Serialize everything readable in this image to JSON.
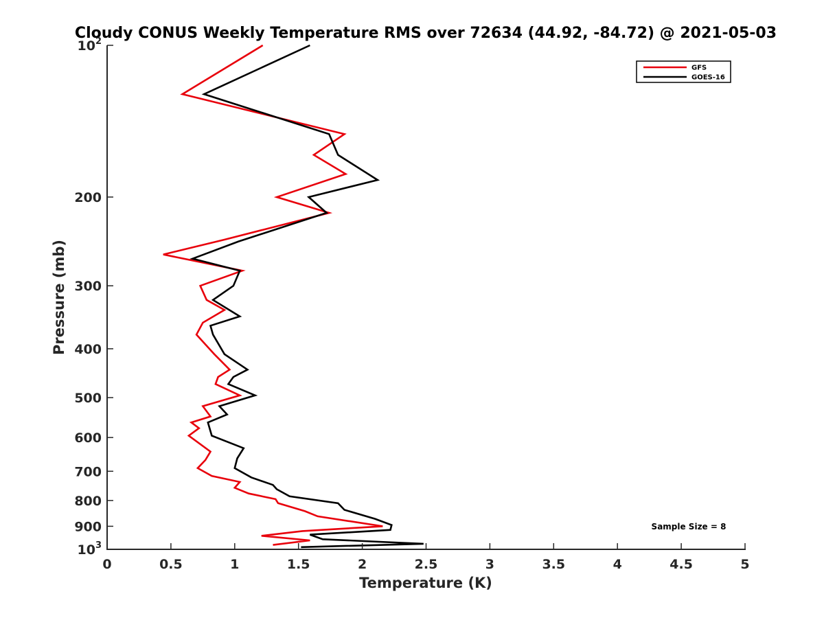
{
  "chart_data": {
    "type": "line",
    "title": "Cloudy CONUS Weekly Temperature RMS over 72634 (44.92, -84.72) @ 2021-05-03",
    "xlabel": "Temperature (K)",
    "ylabel": "Pressure (mb)",
    "xlim": [
      0,
      5
    ],
    "ylim": [
      100,
      1000
    ],
    "y_scale": "log",
    "y_reversed": true,
    "x_ticks": [
      "0",
      "0.5",
      "1",
      "1.5",
      "2",
      "2.5",
      "3",
      "3.5",
      "4",
      "4.5",
      "5"
    ],
    "y_ticks": [
      {
        "value": 100,
        "base": "10",
        "exp": "2"
      },
      {
        "value": 200,
        "label": "200"
      },
      {
        "value": 300,
        "label": "300"
      },
      {
        "value": 400,
        "label": "400"
      },
      {
        "value": 500,
        "label": "500"
      },
      {
        "value": 600,
        "label": "600"
      },
      {
        "value": 700,
        "label": "700"
      },
      {
        "value": 800,
        "label": "800"
      },
      {
        "value": 900,
        "label": "900"
      },
      {
        "value": 1000,
        "base": "10",
        "exp": "3"
      }
    ],
    "grid": false,
    "legend_position": "top-right",
    "annotation": "Sample Size = 8",
    "series": [
      {
        "name": "GFS",
        "color": "#e8000b",
        "points": [
          [
            1.22,
            100
          ],
          [
            0.59,
            125
          ],
          [
            1.86,
            150
          ],
          [
            1.62,
            165
          ],
          [
            1.87,
            180
          ],
          [
            1.33,
            200
          ],
          [
            1.74,
            215
          ],
          [
            0.92,
            243
          ],
          [
            0.44,
            260
          ],
          [
            1.06,
            280
          ],
          [
            0.73,
            300
          ],
          [
            0.78,
            320
          ],
          [
            0.92,
            335
          ],
          [
            0.75,
            355
          ],
          [
            0.7,
            375
          ],
          [
            0.84,
            410
          ],
          [
            0.96,
            440
          ],
          [
            0.87,
            455
          ],
          [
            0.85,
            470
          ],
          [
            1.04,
            495
          ],
          [
            0.75,
            520
          ],
          [
            0.81,
            545
          ],
          [
            0.66,
            560
          ],
          [
            0.72,
            575
          ],
          [
            0.64,
            595
          ],
          [
            0.81,
            640
          ],
          [
            0.77,
            665
          ],
          [
            0.71,
            690
          ],
          [
            0.82,
            715
          ],
          [
            1.04,
            735
          ],
          [
            1.0,
            755
          ],
          [
            1.11,
            775
          ],
          [
            1.32,
            795
          ],
          [
            1.34,
            810
          ],
          [
            1.55,
            840
          ],
          [
            1.65,
            860
          ],
          [
            2.16,
            900
          ],
          [
            1.53,
            920
          ],
          [
            1.21,
            940
          ],
          [
            1.59,
            960
          ],
          [
            1.3,
            980
          ]
        ]
      },
      {
        "name": "GOES-16",
        "color": "#000000",
        "points": [
          [
            1.59,
            100
          ],
          [
            0.76,
            125
          ],
          [
            1.74,
            150
          ],
          [
            1.81,
            165
          ],
          [
            2.12,
            185
          ],
          [
            1.58,
            200
          ],
          [
            1.72,
            215
          ],
          [
            1.03,
            245
          ],
          [
            0.67,
            265
          ],
          [
            1.04,
            280
          ],
          [
            0.99,
            300
          ],
          [
            0.83,
            320
          ],
          [
            1.04,
            345
          ],
          [
            0.81,
            360
          ],
          [
            0.83,
            375
          ],
          [
            0.92,
            410
          ],
          [
            1.1,
            440
          ],
          [
            0.99,
            455
          ],
          [
            0.95,
            470
          ],
          [
            1.16,
            495
          ],
          [
            0.88,
            520
          ],
          [
            0.94,
            540
          ],
          [
            0.79,
            560
          ],
          [
            0.82,
            595
          ],
          [
            1.07,
            630
          ],
          [
            1.02,
            660
          ],
          [
            1.0,
            690
          ],
          [
            1.13,
            720
          ],
          [
            1.3,
            745
          ],
          [
            1.33,
            760
          ],
          [
            1.43,
            785
          ],
          [
            1.81,
            810
          ],
          [
            1.86,
            835
          ],
          [
            2.1,
            870
          ],
          [
            2.23,
            895
          ],
          [
            2.22,
            915
          ],
          [
            1.59,
            935
          ],
          [
            1.69,
            955
          ],
          [
            2.48,
            975
          ],
          [
            1.52,
            990
          ]
        ]
      }
    ]
  }
}
